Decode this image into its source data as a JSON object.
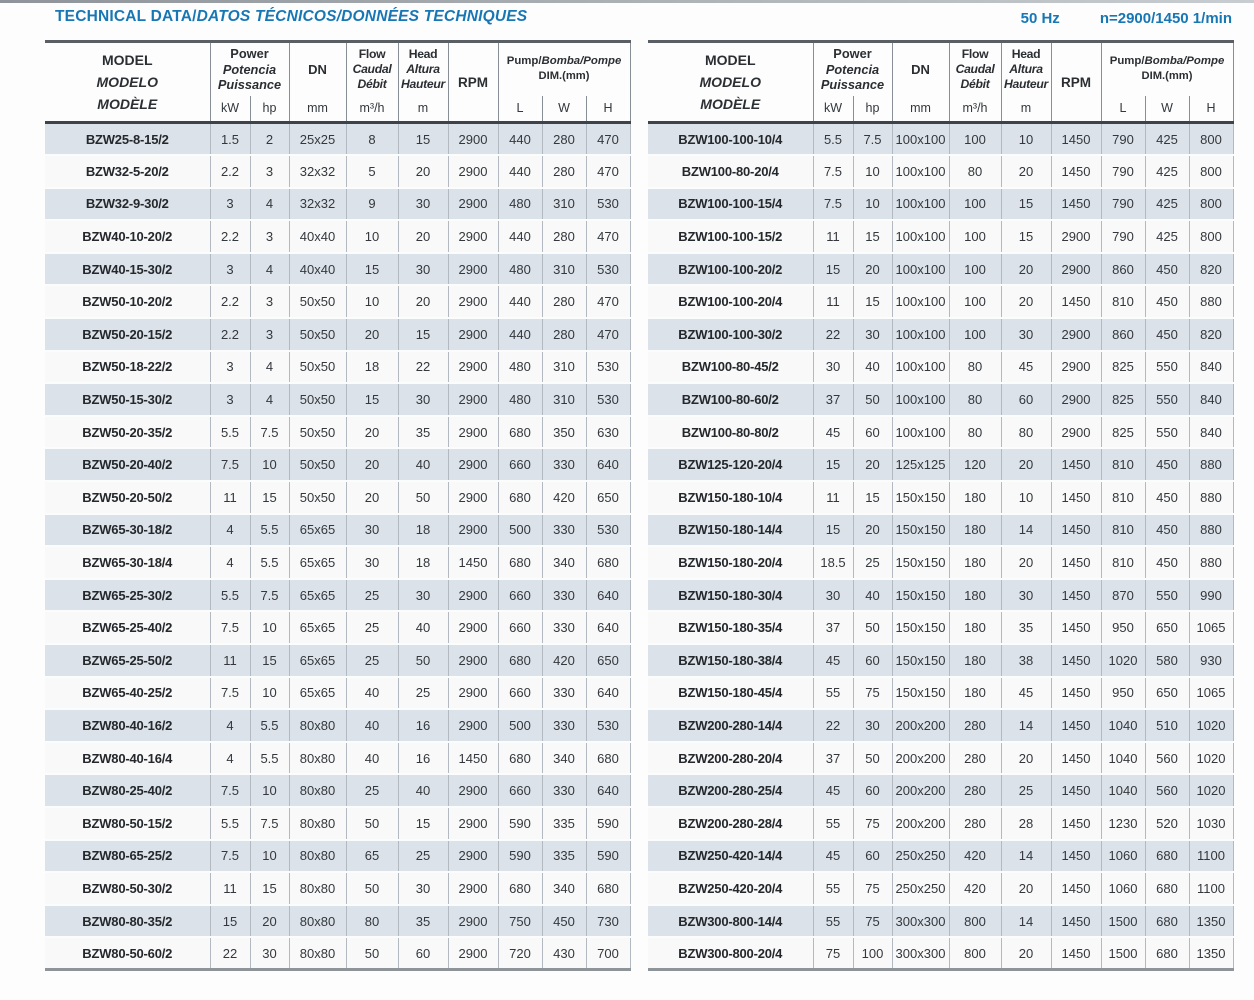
{
  "title": {
    "en": "TECHNICAL DATA/",
    "intl": "DATOS TÉCNICOS/DONNÉES TECHNIQUES"
  },
  "spec": {
    "frequency": "50 Hz",
    "speed": "n=2900/1450 1/min"
  },
  "header": {
    "model": [
      "MODEL",
      "MODELO",
      "MODÈLE"
    ],
    "power": [
      "Power",
      "Potencia",
      "Puissance"
    ],
    "dn": "DN",
    "flow": [
      "Flow",
      "Caudal",
      "Débit"
    ],
    "head": [
      "Head",
      "Altura",
      "Hauteur"
    ],
    "rpm": "RPM",
    "pump": {
      "en": "Pump/",
      "intl": "Bomba/Pompe",
      "line2": "DIM.(mm)"
    },
    "units": {
      "kw": "kW",
      "hp": "hp",
      "dn": "mm",
      "flow": "m³/h",
      "head": "m",
      "l": "L",
      "w": "W",
      "h": "H"
    }
  },
  "tables": {
    "left": {
      "rows": [
        [
          "BZW25-8-15/2",
          "1.5",
          "2",
          "25x25",
          "8",
          "15",
          "2900",
          "440",
          "280",
          "470"
        ],
        [
          "BZW32-5-20/2",
          "2.2",
          "3",
          "32x32",
          "5",
          "20",
          "2900",
          "440",
          "280",
          "470"
        ],
        [
          "BZW32-9-30/2",
          "3",
          "4",
          "32x32",
          "9",
          "30",
          "2900",
          "480",
          "310",
          "530"
        ],
        [
          "BZW40-10-20/2",
          "2.2",
          "3",
          "40x40",
          "10",
          "20",
          "2900",
          "440",
          "280",
          "470"
        ],
        [
          "BZW40-15-30/2",
          "3",
          "4",
          "40x40",
          "15",
          "30",
          "2900",
          "480",
          "310",
          "530"
        ],
        [
          "BZW50-10-20/2",
          "2.2",
          "3",
          "50x50",
          "10",
          "20",
          "2900",
          "440",
          "280",
          "470"
        ],
        [
          "BZW50-20-15/2",
          "2.2",
          "3",
          "50x50",
          "20",
          "15",
          "2900",
          "440",
          "280",
          "470"
        ],
        [
          "BZW50-18-22/2",
          "3",
          "4",
          "50x50",
          "18",
          "22",
          "2900",
          "480",
          "310",
          "530"
        ],
        [
          "BZW50-15-30/2",
          "3",
          "4",
          "50x50",
          "15",
          "30",
          "2900",
          "480",
          "310",
          "530"
        ],
        [
          "BZW50-20-35/2",
          "5.5",
          "7.5",
          "50x50",
          "20",
          "35",
          "2900",
          "680",
          "350",
          "630"
        ],
        [
          "BZW50-20-40/2",
          "7.5",
          "10",
          "50x50",
          "20",
          "40",
          "2900",
          "660",
          "330",
          "640"
        ],
        [
          "BZW50-20-50/2",
          "11",
          "15",
          "50x50",
          "20",
          "50",
          "2900",
          "680",
          "420",
          "650"
        ],
        [
          "BZW65-30-18/2",
          "4",
          "5.5",
          "65x65",
          "30",
          "18",
          "2900",
          "500",
          "330",
          "530"
        ],
        [
          "BZW65-30-18/4",
          "4",
          "5.5",
          "65x65",
          "30",
          "18",
          "1450",
          "680",
          "340",
          "680"
        ],
        [
          "BZW65-25-30/2",
          "5.5",
          "7.5",
          "65x65",
          "25",
          "30",
          "2900",
          "660",
          "330",
          "640"
        ],
        [
          "BZW65-25-40/2",
          "7.5",
          "10",
          "65x65",
          "25",
          "40",
          "2900",
          "660",
          "330",
          "640"
        ],
        [
          "BZW65-25-50/2",
          "11",
          "15",
          "65x65",
          "25",
          "50",
          "2900",
          "680",
          "420",
          "650"
        ],
        [
          "BZW65-40-25/2",
          "7.5",
          "10",
          "65x65",
          "40",
          "25",
          "2900",
          "660",
          "330",
          "640"
        ],
        [
          "BZW80-40-16/2",
          "4",
          "5.5",
          "80x80",
          "40",
          "16",
          "2900",
          "500",
          "330",
          "530"
        ],
        [
          "BZW80-40-16/4",
          "4",
          "5.5",
          "80x80",
          "40",
          "16",
          "1450",
          "680",
          "340",
          "680"
        ],
        [
          "BZW80-25-40/2",
          "7.5",
          "10",
          "80x80",
          "25",
          "40",
          "2900",
          "660",
          "330",
          "640"
        ],
        [
          "BZW80-50-15/2",
          "5.5",
          "7.5",
          "80x80",
          "50",
          "15",
          "2900",
          "590",
          "335",
          "590"
        ],
        [
          "BZW80-65-25/2",
          "7.5",
          "10",
          "80x80",
          "65",
          "25",
          "2900",
          "590",
          "335",
          "590"
        ],
        [
          "BZW80-50-30/2",
          "11",
          "15",
          "80x80",
          "50",
          "30",
          "2900",
          "680",
          "340",
          "680"
        ],
        [
          "BZW80-80-35/2",
          "15",
          "20",
          "80x80",
          "80",
          "35",
          "2900",
          "750",
          "450",
          "730"
        ],
        [
          "BZW80-50-60/2",
          "22",
          "30",
          "80x80",
          "50",
          "60",
          "2900",
          "720",
          "430",
          "700"
        ]
      ]
    },
    "right": {
      "rows": [
        [
          "BZW100-100-10/4",
          "5.5",
          "7.5",
          "100x100",
          "100",
          "10",
          "1450",
          "790",
          "425",
          "800"
        ],
        [
          "BZW100-80-20/4",
          "7.5",
          "10",
          "100x100",
          "80",
          "20",
          "1450",
          "790",
          "425",
          "800"
        ],
        [
          "BZW100-100-15/4",
          "7.5",
          "10",
          "100x100",
          "100",
          "15",
          "1450",
          "790",
          "425",
          "800"
        ],
        [
          "BZW100-100-15/2",
          "11",
          "15",
          "100x100",
          "100",
          "15",
          "2900",
          "790",
          "425",
          "800"
        ],
        [
          "BZW100-100-20/2",
          "15",
          "20",
          "100x100",
          "100",
          "20",
          "2900",
          "860",
          "450",
          "820"
        ],
        [
          "BZW100-100-20/4",
          "11",
          "15",
          "100x100",
          "100",
          "20",
          "1450",
          "810",
          "450",
          "880"
        ],
        [
          "BZW100-100-30/2",
          "22",
          "30",
          "100x100",
          "100",
          "30",
          "2900",
          "860",
          "450",
          "820"
        ],
        [
          "BZW100-80-45/2",
          "30",
          "40",
          "100x100",
          "80",
          "45",
          "2900",
          "825",
          "550",
          "840"
        ],
        [
          "BZW100-80-60/2",
          "37",
          "50",
          "100x100",
          "80",
          "60",
          "2900",
          "825",
          "550",
          "840"
        ],
        [
          "BZW100-80-80/2",
          "45",
          "60",
          "100x100",
          "80",
          "80",
          "2900",
          "825",
          "550",
          "840"
        ],
        [
          "BZW125-120-20/4",
          "15",
          "20",
          "125x125",
          "120",
          "20",
          "1450",
          "810",
          "450",
          "880"
        ],
        [
          "BZW150-180-10/4",
          "11",
          "15",
          "150x150",
          "180",
          "10",
          "1450",
          "810",
          "450",
          "880"
        ],
        [
          "BZW150-180-14/4",
          "15",
          "20",
          "150x150",
          "180",
          "14",
          "1450",
          "810",
          "450",
          "880"
        ],
        [
          "BZW150-180-20/4",
          "18.5",
          "25",
          "150x150",
          "180",
          "20",
          "1450",
          "810",
          "450",
          "880"
        ],
        [
          "BZW150-180-30/4",
          "30",
          "40",
          "150x150",
          "180",
          "30",
          "1450",
          "870",
          "550",
          "990"
        ],
        [
          "BZW150-180-35/4",
          "37",
          "50",
          "150x150",
          "180",
          "35",
          "1450",
          "950",
          "650",
          "1065"
        ],
        [
          "BZW150-180-38/4",
          "45",
          "60",
          "150x150",
          "180",
          "38",
          "1450",
          "1020",
          "580",
          "930"
        ],
        [
          "BZW150-180-45/4",
          "55",
          "75",
          "150x150",
          "180",
          "45",
          "1450",
          "950",
          "650",
          "1065"
        ],
        [
          "BZW200-280-14/4",
          "22",
          "30",
          "200x200",
          "280",
          "14",
          "1450",
          "1040",
          "510",
          "1020"
        ],
        [
          "BZW200-280-20/4",
          "37",
          "50",
          "200x200",
          "280",
          "20",
          "1450",
          "1040",
          "560",
          "1020"
        ],
        [
          "BZW200-280-25/4",
          "45",
          "60",
          "200x200",
          "280",
          "25",
          "1450",
          "1040",
          "560",
          "1020"
        ],
        [
          "BZW200-280-28/4",
          "55",
          "75",
          "200x200",
          "280",
          "28",
          "1450",
          "1230",
          "520",
          "1030"
        ],
        [
          "BZW250-420-14/4",
          "45",
          "60",
          "250x250",
          "420",
          "14",
          "1450",
          "1060",
          "680",
          "1100"
        ],
        [
          "BZW250-420-20/4",
          "55",
          "75",
          "250x250",
          "420",
          "20",
          "1450",
          "1060",
          "680",
          "1100"
        ],
        [
          "BZW300-800-14/4",
          "55",
          "75",
          "300x300",
          "800",
          "14",
          "1450",
          "1500",
          "680",
          "1350"
        ],
        [
          "BZW300-800-20/4",
          "75",
          "100",
          "300x300",
          "800",
          "20",
          "1450",
          "1500",
          "680",
          "1350"
        ]
      ]
    }
  },
  "colors": {
    "accent_blue": "#1777b5",
    "row_shade": "#dbe2e9",
    "row_plain": "#f8f9f8"
  }
}
